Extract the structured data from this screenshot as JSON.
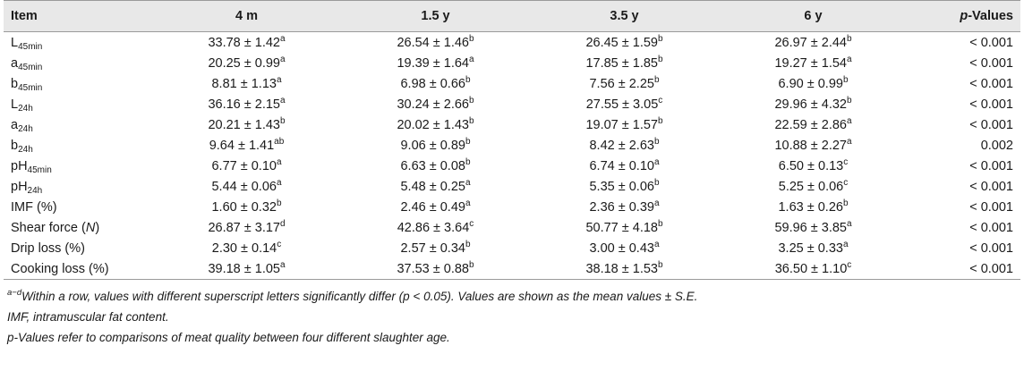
{
  "table": {
    "headers": {
      "item": "Item",
      "m4": "4 m",
      "y15": "1.5 y",
      "y35": "3.5 y",
      "y6": "6 y",
      "p_italic": "p",
      "p_rest": "-Values"
    },
    "rows": [
      {
        "name": "L",
        "sub": "45min",
        "suffix": "",
        "suffix_italic": "",
        "suffix_end": "",
        "cells": [
          {
            "v": "33.78 ± 1.42",
            "s": "a"
          },
          {
            "v": "26.54 ± 1.46",
            "s": "b"
          },
          {
            "v": "26.45 ± 1.59",
            "s": "b"
          },
          {
            "v": "26.97 ± 2.44",
            "s": "b"
          }
        ],
        "p": "< 0.001"
      },
      {
        "name": "a",
        "sub": "45min",
        "suffix": "",
        "suffix_italic": "",
        "suffix_end": "",
        "cells": [
          {
            "v": "20.25 ± 0.99",
            "s": "a"
          },
          {
            "v": "19.39 ± 1.64",
            "s": "a"
          },
          {
            "v": "17.85 ± 1.85",
            "s": "b"
          },
          {
            "v": "19.27 ± 1.54",
            "s": "a"
          }
        ],
        "p": "< 0.001"
      },
      {
        "name": "b",
        "sub": "45min",
        "suffix": "",
        "suffix_italic": "",
        "suffix_end": "",
        "cells": [
          {
            "v": "8.81 ± 1.13",
            "s": "a"
          },
          {
            "v": "6.98 ± 0.66",
            "s": "b"
          },
          {
            "v": "7.56 ± 2.25",
            "s": "b"
          },
          {
            "v": "6.90 ± 0.99",
            "s": "b"
          }
        ],
        "p": "< 0.001"
      },
      {
        "name": "L",
        "sub": "24h",
        "suffix": "",
        "suffix_italic": "",
        "suffix_end": "",
        "cells": [
          {
            "v": "36.16 ± 2.15",
            "s": "a"
          },
          {
            "v": "30.24 ± 2.66",
            "s": "b"
          },
          {
            "v": "27.55 ± 3.05",
            "s": "c"
          },
          {
            "v": "29.96 ± 4.32",
            "s": "b"
          }
        ],
        "p": "< 0.001"
      },
      {
        "name": "a",
        "sub": "24h",
        "suffix": "",
        "suffix_italic": "",
        "suffix_end": "",
        "cells": [
          {
            "v": "20.21 ± 1.43",
            "s": "b"
          },
          {
            "v": "20.02 ± 1.43",
            "s": "b"
          },
          {
            "v": "19.07 ± 1.57",
            "s": "b"
          },
          {
            "v": "22.59 ± 2.86",
            "s": "a"
          }
        ],
        "p": "< 0.001"
      },
      {
        "name": "b",
        "sub": "24h",
        "suffix": "",
        "suffix_italic": "",
        "suffix_end": "",
        "cells": [
          {
            "v": "9.64 ± 1.41",
            "s": "ab"
          },
          {
            "v": "9.06 ± 0.89",
            "s": "b"
          },
          {
            "v": "8.42 ± 2.63",
            "s": "b"
          },
          {
            "v": "10.88 ± 2.27",
            "s": "a"
          }
        ],
        "p": "0.002"
      },
      {
        "name": "pH",
        "sub": "45min",
        "suffix": "",
        "suffix_italic": "",
        "suffix_end": "",
        "cells": [
          {
            "v": "6.77 ± 0.10",
            "s": "a"
          },
          {
            "v": "6.63 ± 0.08",
            "s": "b"
          },
          {
            "v": "6.74 ± 0.10",
            "s": "a"
          },
          {
            "v": "6.50 ± 0.13",
            "s": "c"
          }
        ],
        "p": "< 0.001"
      },
      {
        "name": "pH",
        "sub": "24h",
        "suffix": "",
        "suffix_italic": "",
        "suffix_end": "",
        "cells": [
          {
            "v": "5.44 ± 0.06",
            "s": "a"
          },
          {
            "v": "5.48 ± 0.25",
            "s": "a"
          },
          {
            "v": "5.35 ± 0.06",
            "s": "b"
          },
          {
            "v": "5.25 ± 0.06",
            "s": "c"
          }
        ],
        "p": "< 0.001"
      },
      {
        "name": "IMF (%)",
        "sub": "",
        "suffix": "",
        "suffix_italic": "",
        "suffix_end": "",
        "cells": [
          {
            "v": "1.60 ± 0.32",
            "s": "b"
          },
          {
            "v": "2.46 ± 0.49",
            "s": "a"
          },
          {
            "v": "2.36 ± 0.39",
            "s": "a"
          },
          {
            "v": "1.63 ± 0.26",
            "s": "b"
          }
        ],
        "p": "< 0.001"
      },
      {
        "name": "Shear force (",
        "sub": "",
        "suffix": "",
        "suffix_italic": "N",
        "suffix_end": ")",
        "cells": [
          {
            "v": "26.87 ± 3.17",
            "s": "d"
          },
          {
            "v": "42.86 ± 3.64",
            "s": "c"
          },
          {
            "v": "50.77 ± 4.18",
            "s": "b"
          },
          {
            "v": "59.96 ± 3.85",
            "s": "a"
          }
        ],
        "p": "< 0.001"
      },
      {
        "name": "Drip loss (%)",
        "sub": "",
        "suffix": "",
        "suffix_italic": "",
        "suffix_end": "",
        "cells": [
          {
            "v": "2.30 ± 0.14",
            "s": "c"
          },
          {
            "v": "2.57 ± 0.34",
            "s": "b"
          },
          {
            "v": "3.00 ± 0.43",
            "s": "a"
          },
          {
            "v": "3.25 ± 0.33",
            "s": "a"
          }
        ],
        "p": "< 0.001"
      },
      {
        "name": "Cooking loss (%)",
        "sub": "",
        "suffix": "",
        "suffix_italic": "",
        "suffix_end": "",
        "cells": [
          {
            "v": "39.18 ± 1.05",
            "s": "a"
          },
          {
            "v": "37.53 ± 0.88",
            "s": "b"
          },
          {
            "v": "38.18 ± 1.53",
            "s": "b"
          },
          {
            "v": "36.50 ± 1.10",
            "s": "c"
          }
        ],
        "p": "< 0.001"
      }
    ]
  },
  "footnotes": {
    "note1_sup": "a−d",
    "note1_text": "Within a row, values with different superscript letters significantly differ (p < 0.05). Values are shown as the mean values ± S.E.",
    "note2": "IMF, intramuscular fat content.",
    "note3": "p-Values refer to comparisons of meat quality between four different slaughter age."
  }
}
